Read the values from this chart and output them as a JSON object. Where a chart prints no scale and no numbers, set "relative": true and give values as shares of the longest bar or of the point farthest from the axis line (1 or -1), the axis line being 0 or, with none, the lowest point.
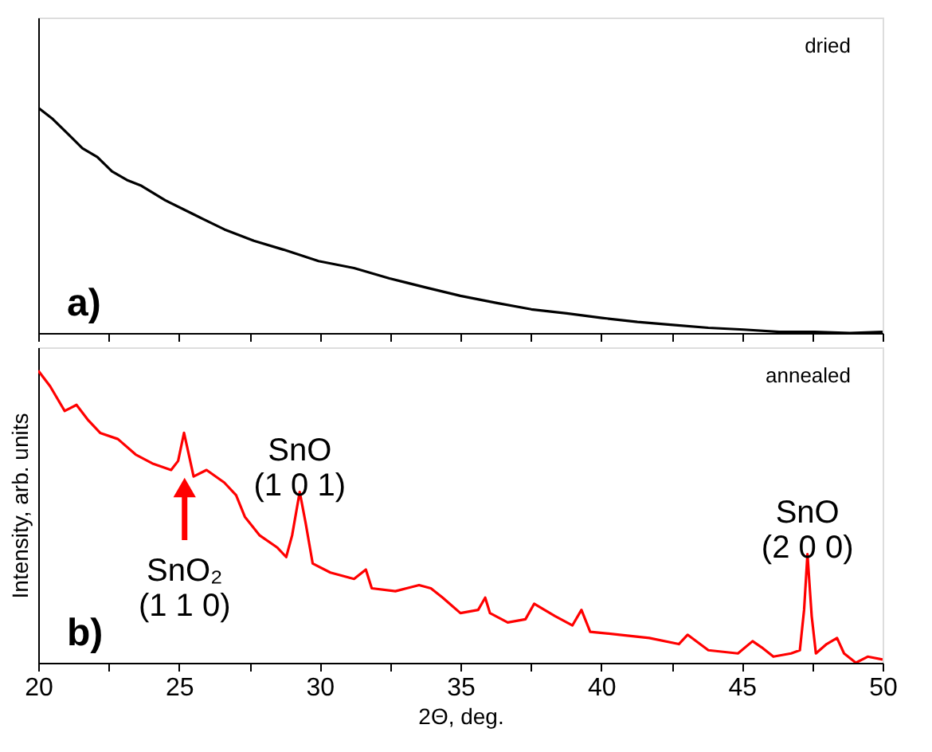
{
  "chart_data": [
    {
      "type": "line",
      "relative": true,
      "tick_labels": false,
      "xlim": [
        20,
        50
      ],
      "xticks": [
        20,
        {
          "value": 22.5,
          "label": null
        },
        25,
        {
          "value": 27.5,
          "label": null
        },
        30,
        {
          "value": 32.5,
          "label": null
        },
        35,
        {
          "value": 37.5,
          "label": null
        },
        40,
        {
          "value": 42.5,
          "label": null
        },
        45,
        {
          "value": 47.5,
          "label": null
        },
        50
      ],
      "annotations": [
        "dried",
        "a)"
      ],
      "series": [
        {
          "color": "#000000",
          "x": [
            20.0,
            20.52,
            21.05,
            21.57,
            22.1,
            22.62,
            23.15,
            23.67,
            24.51,
            25.56,
            26.61,
            27.66,
            28.71,
            29.96,
            31.22,
            32.48,
            33.74,
            35.0,
            36.26,
            37.52,
            38.78,
            40.03,
            41.29,
            42.55,
            43.81,
            45.07,
            46.33,
            47.59,
            48.84,
            50.0
          ],
          "values": [
            1.0,
            0.949,
            0.884,
            0.82,
            0.781,
            0.717,
            0.679,
            0.653,
            0.589,
            0.524,
            0.46,
            0.409,
            0.37,
            0.319,
            0.288,
            0.242,
            0.203,
            0.165,
            0.134,
            0.105,
            0.087,
            0.067,
            0.049,
            0.036,
            0.023,
            0.015,
            0.005,
            0.005,
            0.0,
            0.005
          ]
        }
      ]
    },
    {
      "type": "line",
      "relative": true,
      "tick_labels": "x",
      "xlim": [
        20,
        50
      ],
      "xlabel": "2Θ, deg.",
      "ylabel": "Intensity, arb. units",
      "xticks": [
        20,
        {
          "value": 22.5,
          "label": null
        },
        25,
        {
          "value": 27.5,
          "label": null
        },
        30,
        {
          "value": 32.5,
          "label": null
        },
        35,
        {
          "value": 37.5,
          "label": null
        },
        40,
        {
          "value": 42.5,
          "label": null
        },
        45,
        {
          "value": 47.5,
          "label": null
        },
        50
      ],
      "annotations": [
        "annealed",
        "b)",
        {
          "text": "SnO\n(1 0 1)",
          "x": 29.29,
          "y": 0.585
        },
        {
          "text": "SnO₂\n(1 1 0)",
          "x": 25.2,
          "y": 0.64
        },
        {
          "text": "SnO\n(2 0 0)",
          "x": 47.33,
          "y": 0.372
        }
      ],
      "series": [
        {
          "color": "#ff0000",
          "x": [
            20.0,
            20.42,
            20.94,
            21.36,
            21.78,
            22.2,
            22.83,
            23.46,
            24.09,
            24.72,
            24.97,
            25.18,
            25.35,
            25.52,
            25.98,
            26.61,
            27.03,
            27.34,
            27.87,
            28.5,
            28.81,
            29.02,
            29.29,
            29.5,
            29.75,
            30.38,
            31.22,
            31.64,
            31.85,
            32.69,
            33.53,
            33.95,
            34.37,
            35.0,
            35.63,
            35.88,
            36.05,
            36.68,
            37.31,
            37.62,
            38.36,
            38.98,
            39.3,
            39.61,
            40.66,
            41.71,
            42.76,
            43.07,
            43.81,
            44.86,
            45.38,
            45.7,
            46.12,
            46.75,
            47.06,
            47.21,
            47.33,
            47.48,
            47.63,
            48.01,
            48.38,
            48.63,
            49.05,
            49.47,
            50.0
          ],
          "values": [
            1.0,
            0.947,
            0.862,
            0.883,
            0.83,
            0.787,
            0.766,
            0.713,
            0.681,
            0.66,
            0.691,
            0.787,
            0.713,
            0.638,
            0.66,
            0.617,
            0.574,
            0.5,
            0.436,
            0.394,
            0.362,
            0.436,
            0.585,
            0.479,
            0.34,
            0.309,
            0.287,
            0.319,
            0.255,
            0.245,
            0.266,
            0.255,
            0.223,
            0.17,
            0.181,
            0.223,
            0.17,
            0.138,
            0.149,
            0.202,
            0.16,
            0.128,
            0.181,
            0.106,
            0.096,
            0.085,
            0.064,
            0.096,
            0.043,
            0.032,
            0.074,
            0.053,
            0.021,
            0.032,
            0.043,
            0.181,
            0.372,
            0.16,
            0.032,
            0.064,
            0.085,
            0.032,
            0.0,
            0.021,
            0.011
          ]
        }
      ]
    }
  ]
}
